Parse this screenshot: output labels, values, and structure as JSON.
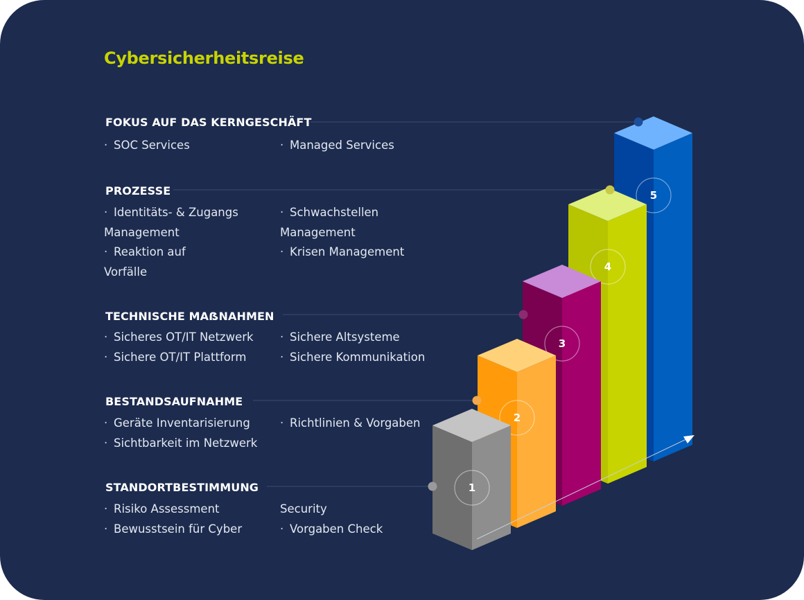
{
  "title": "Cybersicherheitsreise",
  "sections": [
    {
      "title": "FOKUS AUF DAS KERNGESCHÄFT",
      "left": [
        "SOC Services"
      ],
      "right": [
        "Managed Services"
      ]
    },
    {
      "title": "PROZESSE",
      "left": [
        "Identitäts- & Zugangs",
        "Management",
        "Reaktion auf",
        "Vorfälle"
      ],
      "right": [
        "Schwachstellen",
        "Management",
        "Krisen Management"
      ]
    },
    {
      "title": "TECHNISCHE MAẞNAHMEN",
      "left": [
        "Sicheres OT/IT Netzwerk",
        "Sichere OT/IT Plattform"
      ],
      "right": [
        "Sichere Altsysteme",
        "Sichere Kommunikation"
      ]
    },
    {
      "title": "BESTANDSAUFNAHME",
      "left": [
        "Geräte Inventarisierung",
        "Sichtbarkeit im Netzwerk"
      ],
      "right": [
        "Richtlinien & Vorgaben"
      ]
    },
    {
      "title": "STANDORTBESTIMMUNG",
      "left": [
        "Risiko Assessment",
        "Bewusstsein für Cyber"
      ],
      "right": [
        "Security",
        "Vorgaben Check"
      ]
    }
  ],
  "steps": [
    {
      "label": "1",
      "front": "#6f6f6f",
      "side": "#8e8e8e",
      "top": "#c4c4c4",
      "dot": "#9a9a9a"
    },
    {
      "label": "2",
      "front": "#ff9a0a",
      "side": "#ffae3a",
      "top": "#ffd27a",
      "dot": "#f2a94a"
    },
    {
      "label": "3",
      "front": "#7a0050",
      "side": "#a3006c",
      "top": "#c98ad8",
      "dot": "#8c2c70"
    },
    {
      "label": "4",
      "front": "#b7c400",
      "side": "#c8d400",
      "top": "#dff07e",
      "dot": "#c8c84a"
    },
    {
      "label": "5",
      "front": "#0044a0",
      "side": "#005fbf",
      "top": "#6fb3ff",
      "dot": "#1d4e9a"
    }
  ],
  "colors": {
    "background": "#1c2b4e",
    "accent": "#c8d400",
    "connector_line": "#3d4d72"
  },
  "icons": {
    "bullet": "middle-dot"
  }
}
